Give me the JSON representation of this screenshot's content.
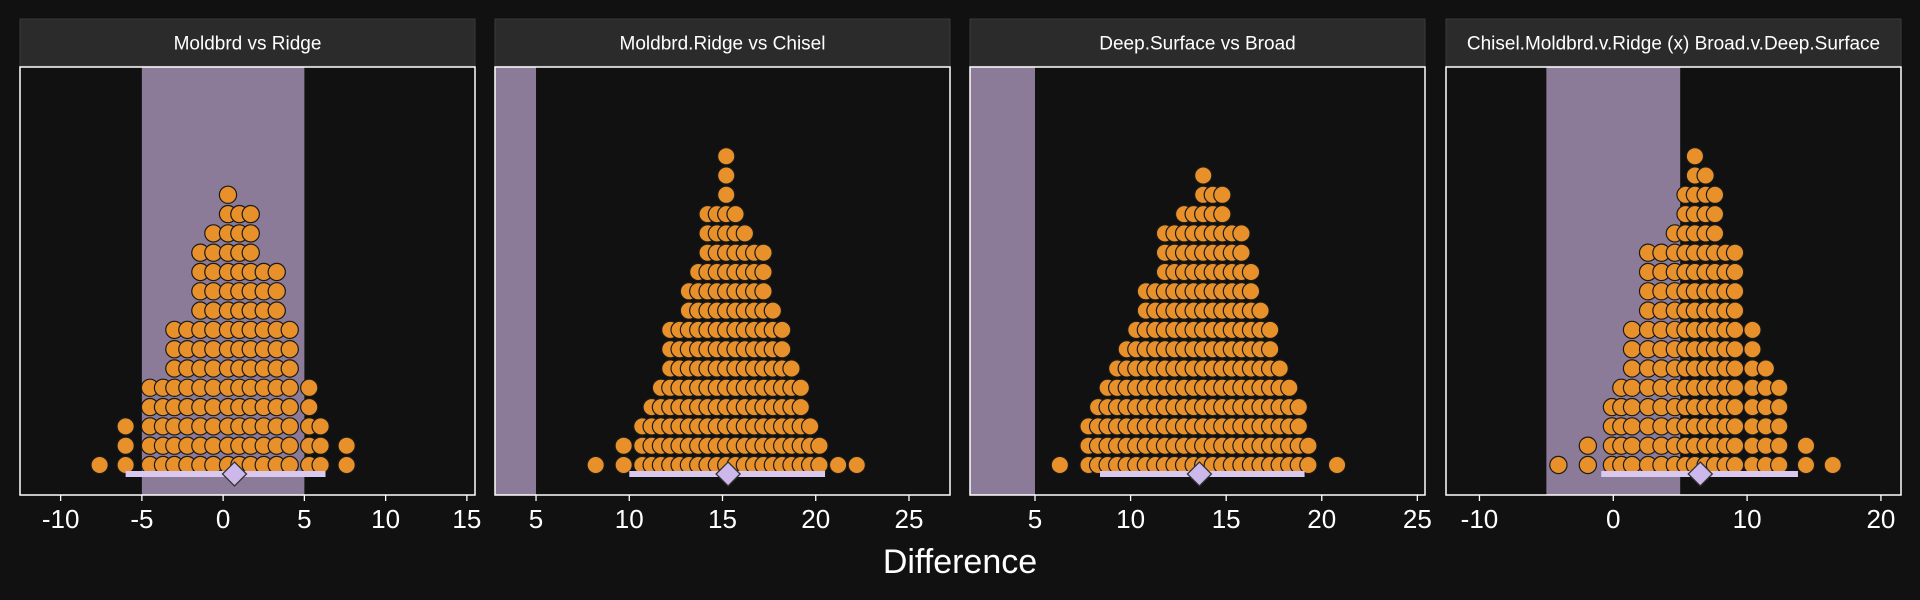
{
  "figure": {
    "xlabel": "Difference",
    "colors": {
      "background": "#111111",
      "panel_bg": "#111111",
      "strip_bg": "#2b2b2b",
      "strip_text": "#ffffff",
      "border": "#ffffff",
      "dot_fill": "#e8912a",
      "dot_stroke": "#1a1a1a",
      "rope_fill": "#8c7b98",
      "ci_bar": "#d9c8f0",
      "point_fill": "#cdb8ec",
      "point_stroke": "#333333",
      "axis_text": "#ffffff"
    }
  },
  "chart_data": [
    {
      "type": "dotplot",
      "title": "Moldbrd vs Ridge",
      "xlim": [
        -12.5,
        15.5
      ],
      "xticks": [
        -10,
        -5,
        0,
        5,
        10,
        15
      ],
      "xtick_labels": [
        "-10",
        "-5",
        "0",
        "5",
        "10",
        "15"
      ],
      "rope": [
        -5,
        5
      ],
      "binwidth": 1.27,
      "bins": [
        {
          "x": -7.6,
          "count": 1
        },
        {
          "x": -6.0,
          "count": 3
        },
        {
          "x": -4.5,
          "count": 5
        },
        {
          "x": -3.7,
          "count": 5
        },
        {
          "x": -3.0,
          "count": 8
        },
        {
          "x": -2.2,
          "count": 8
        },
        {
          "x": -1.4,
          "count": 12
        },
        {
          "x": -0.6,
          "count": 13
        },
        {
          "x": 0.3,
          "count": 15
        },
        {
          "x": 1.0,
          "count": 14
        },
        {
          "x": 1.7,
          "count": 14
        },
        {
          "x": 2.5,
          "count": 11
        },
        {
          "x": 3.3,
          "count": 11
        },
        {
          "x": 4.1,
          "count": 8
        },
        {
          "x": 5.3,
          "count": 5
        },
        {
          "x": 6.0,
          "count": 3
        },
        {
          "x": 7.6,
          "count": 2
        }
      ],
      "ci": [
        -6.0,
        6.3
      ],
      "point": 0.7
    },
    {
      "type": "dotplot",
      "title": "Moldbrd.Ridge vs Chisel",
      "xlim": [
        2.8,
        27.2
      ],
      "xticks": [
        5,
        10,
        15,
        20,
        25
      ],
      "xtick_labels": [
        "5",
        "10",
        "15",
        "20",
        "25"
      ],
      "rope": [
        -5,
        5
      ],
      "binwidth": 1.0,
      "bins": [
        {
          "x": 8.2,
          "count": 1
        },
        {
          "x": 9.7,
          "count": 2
        },
        {
          "x": 10.7,
          "count": 3
        },
        {
          "x": 11.2,
          "count": 4
        },
        {
          "x": 11.7,
          "count": 5
        },
        {
          "x": 12.2,
          "count": 8
        },
        {
          "x": 12.7,
          "count": 8
        },
        {
          "x": 13.2,
          "count": 10
        },
        {
          "x": 13.7,
          "count": 11
        },
        {
          "x": 14.2,
          "count": 14
        },
        {
          "x": 14.7,
          "count": 14
        },
        {
          "x": 15.2,
          "count": 17
        },
        {
          "x": 15.7,
          "count": 14
        },
        {
          "x": 16.2,
          "count": 13
        },
        {
          "x": 16.7,
          "count": 12
        },
        {
          "x": 17.2,
          "count": 12
        },
        {
          "x": 17.7,
          "count": 9
        },
        {
          "x": 18.2,
          "count": 8
        },
        {
          "x": 18.7,
          "count": 6
        },
        {
          "x": 19.2,
          "count": 5
        },
        {
          "x": 19.7,
          "count": 3
        },
        {
          "x": 20.2,
          "count": 2
        },
        {
          "x": 21.2,
          "count": 1
        },
        {
          "x": 22.2,
          "count": 1
        }
      ],
      "ci": [
        10.0,
        20.5
      ],
      "point": 15.3
    },
    {
      "type": "dotplot",
      "title": "Deep.Surface vs Broad",
      "xlim": [
        1.6,
        25.4
      ],
      "xticks": [
        5,
        10,
        15,
        20,
        25
      ],
      "xtick_labels": [
        "5",
        "10",
        "15",
        "20",
        "25"
      ],
      "rope": [
        -5,
        5
      ],
      "binwidth": 1.0,
      "bins": [
        {
          "x": 6.3,
          "count": 1
        },
        {
          "x": 7.8,
          "count": 3
        },
        {
          "x": 8.3,
          "count": 4
        },
        {
          "x": 8.8,
          "count": 5
        },
        {
          "x": 9.3,
          "count": 6
        },
        {
          "x": 9.8,
          "count": 7
        },
        {
          "x": 10.3,
          "count": 8
        },
        {
          "x": 10.8,
          "count": 10
        },
        {
          "x": 11.3,
          "count": 10
        },
        {
          "x": 11.8,
          "count": 13
        },
        {
          "x": 12.3,
          "count": 13
        },
        {
          "x": 12.8,
          "count": 14
        },
        {
          "x": 13.3,
          "count": 14
        },
        {
          "x": 13.8,
          "count": 16
        },
        {
          "x": 14.3,
          "count": 15
        },
        {
          "x": 14.8,
          "count": 15
        },
        {
          "x": 15.3,
          "count": 13
        },
        {
          "x": 15.8,
          "count": 13
        },
        {
          "x": 16.3,
          "count": 11
        },
        {
          "x": 16.8,
          "count": 9
        },
        {
          "x": 17.3,
          "count": 8
        },
        {
          "x": 17.8,
          "count": 6
        },
        {
          "x": 18.3,
          "count": 5
        },
        {
          "x": 18.8,
          "count": 4
        },
        {
          "x": 19.3,
          "count": 2
        },
        {
          "x": 20.8,
          "count": 1
        }
      ],
      "ci": [
        8.4,
        19.1
      ],
      "point": 13.6
    },
    {
      "type": "dotplot",
      "title": "Chisel.Moldbrd.v.Ridge (x) Broad.v.Deep.Surface",
      "xlim": [
        -12.5,
        21.5
      ],
      "xticks": [
        -10,
        0,
        10,
        20
      ],
      "xtick_labels": [
        "-10",
        "0",
        "10",
        "20"
      ],
      "rope": [
        -5,
        5
      ],
      "binwidth": 1.55,
      "bins": [
        {
          "x": -4.1,
          "count": 1
        },
        {
          "x": -1.9,
          "count": 2
        },
        {
          "x": -0.1,
          "count": 4
        },
        {
          "x": 0.6,
          "count": 5
        },
        {
          "x": 1.4,
          "count": 8
        },
        {
          "x": 2.6,
          "count": 12
        },
        {
          "x": 3.6,
          "count": 12
        },
        {
          "x": 4.6,
          "count": 13
        },
        {
          "x": 5.4,
          "count": 15
        },
        {
          "x": 6.1,
          "count": 17
        },
        {
          "x": 6.9,
          "count": 16
        },
        {
          "x": 7.6,
          "count": 15
        },
        {
          "x": 8.4,
          "count": 12
        },
        {
          "x": 9.1,
          "count": 12
        },
        {
          "x": 10.4,
          "count": 8
        },
        {
          "x": 11.4,
          "count": 6
        },
        {
          "x": 12.4,
          "count": 5
        },
        {
          "x": 14.4,
          "count": 2
        },
        {
          "x": 16.4,
          "count": 1
        }
      ],
      "ci": [
        -0.9,
        13.8
      ],
      "point": 6.5
    }
  ]
}
